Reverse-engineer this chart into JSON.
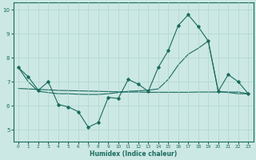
{
  "xlabel": "Humidex (Indice chaleur)",
  "x": [
    0,
    1,
    2,
    3,
    4,
    5,
    6,
    7,
    8,
    9,
    10,
    11,
    12,
    13,
    14,
    15,
    16,
    17,
    18,
    19,
    20,
    21,
    22,
    23
  ],
  "line1": [
    7.6,
    7.2,
    6.65,
    7.0,
    6.05,
    5.95,
    5.75,
    5.1,
    5.3,
    6.35,
    6.3,
    7.1,
    6.9,
    6.6,
    7.6,
    8.3,
    9.35,
    9.8,
    9.3,
    8.7,
    6.6,
    7.3,
    7.0,
    6.5
  ],
  "line2": [
    7.6,
    7.0,
    6.6,
    6.55,
    6.5,
    6.5,
    6.48,
    6.47,
    6.47,
    6.5,
    6.55,
    6.6,
    6.62,
    6.65,
    6.7,
    7.1,
    7.7,
    8.15,
    8.4,
    8.7,
    6.6,
    6.55,
    6.5,
    6.5
  ],
  "line3": [
    6.72,
    6.7,
    6.68,
    6.66,
    6.64,
    6.63,
    6.62,
    6.61,
    6.6,
    6.59,
    6.58,
    6.57,
    6.57,
    6.56,
    6.56,
    6.56,
    6.56,
    6.56,
    6.57,
    6.57,
    6.57,
    6.57,
    6.57,
    6.5
  ],
  "bg_color": "#cce8e4",
  "grid_color": "#b0d4ce",
  "line_color": "#1a6b5e",
  "ylim": [
    4.5,
    10.3
  ],
  "xlim": [
    -0.5,
    23.5
  ],
  "yticks": [
    5,
    6,
    7,
    8,
    9,
    10
  ],
  "xticks": [
    0,
    1,
    2,
    3,
    4,
    5,
    6,
    7,
    8,
    9,
    10,
    11,
    12,
    13,
    14,
    15,
    16,
    17,
    18,
    19,
    20,
    21,
    22,
    23
  ]
}
